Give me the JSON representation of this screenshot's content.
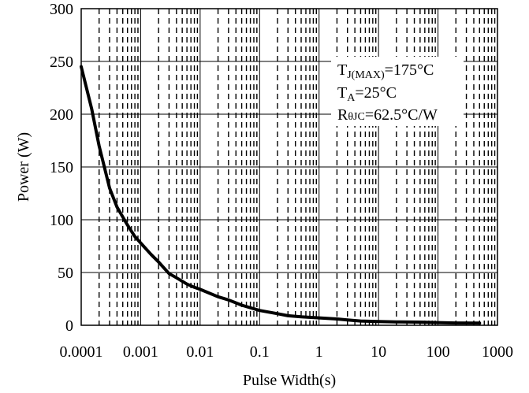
{
  "chart_data": {
    "type": "line",
    "xlabel": "Pulse Width(s)",
    "ylabel": "Power (W)",
    "x_scale": "log",
    "xlim": [
      0.0001,
      1000
    ],
    "ylim": [
      0,
      300
    ],
    "grid": true,
    "x_ticks": [
      "0.0001",
      "0.001",
      "0.01",
      "0.1",
      "1",
      "10",
      "100",
      "1000"
    ],
    "y_ticks": [
      "0",
      "50",
      "100",
      "150",
      "200",
      "250",
      "300"
    ],
    "annotation": {
      "line1": {
        "main": "T",
        "sub": "J(MAX)",
        "rest": "=175°C"
      },
      "line2": {
        "main": "T",
        "sub": "A",
        "rest": "=25°C"
      },
      "line3": {
        "main": "R",
        "sub": "θJC",
        "rest": "=62.5°C/W"
      }
    },
    "series": [
      {
        "color": "#000000",
        "x": [
          0.0001,
          0.00015,
          0.0002,
          0.0003,
          0.0004,
          0.0006,
          0.0008,
          0.001,
          0.0015,
          0.002,
          0.003,
          0.004,
          0.006,
          0.008,
          0.01,
          0.02,
          0.03,
          0.05,
          0.1,
          0.2,
          0.3,
          0.5,
          1,
          2,
          3,
          5,
          10,
          20,
          50,
          100,
          200,
          500
        ],
        "y": [
          245,
          205,
          170,
          130,
          112,
          95,
          84,
          78,
          67,
          60,
          49,
          45,
          39,
          36,
          34,
          27,
          24,
          19,
          14,
          11,
          9,
          8,
          7,
          6,
          5,
          4,
          3.5,
          3.2,
          3,
          2.5,
          2.2,
          2
        ]
      }
    ]
  }
}
